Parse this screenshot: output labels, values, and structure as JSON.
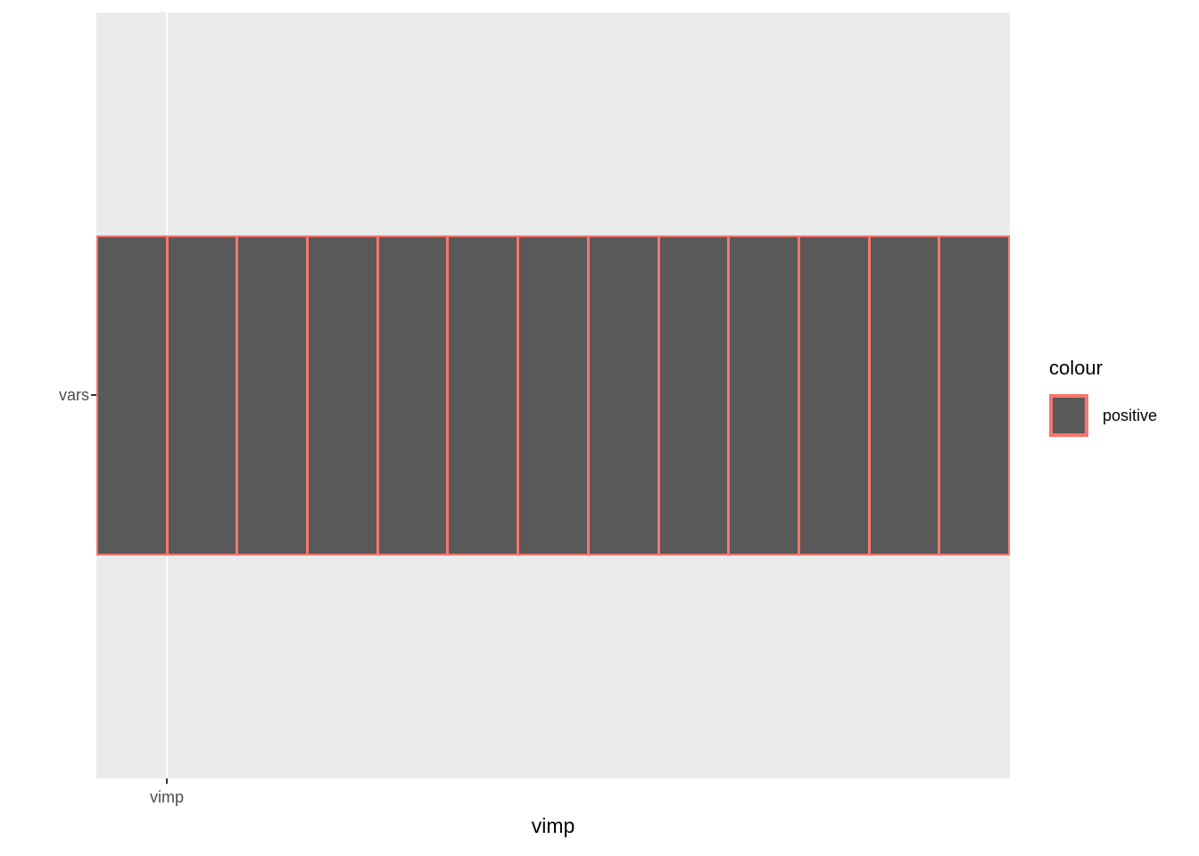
{
  "figure": {
    "background": "#FFFFFF",
    "panel_background": "#EBEBEB",
    "gridline_color": "#FFFFFF",
    "axis_text_color": "#4D4D4D",
    "tick_mark_color": "#333333"
  },
  "axes": {
    "y_tick_label": "vars",
    "x_tick_label": "vimp",
    "x_axis_title": "vimp"
  },
  "legend": {
    "title": "colour",
    "items": [
      {
        "label": "positive",
        "fill": "#595959",
        "stroke": "#F8766D"
      }
    ]
  },
  "chart_data": {
    "type": "bar",
    "orientation": "horizontal",
    "stacked": true,
    "y_categories": [
      "vars"
    ],
    "x_tick_labels": [
      "vimp"
    ],
    "xlabel": "vimp",
    "ylabel": "",
    "segment_count": 13,
    "segments_equal_width": true,
    "segment_fill": "#595959",
    "segment_stroke": "#F8766D",
    "series": [
      {
        "name": "positive",
        "values": [
          1,
          1,
          1,
          1,
          1,
          1,
          1,
          1,
          1,
          1,
          1,
          1,
          1
        ]
      }
    ],
    "grid": "single white vertical gridline at first x tick",
    "legend_position": "right",
    "title": ""
  }
}
